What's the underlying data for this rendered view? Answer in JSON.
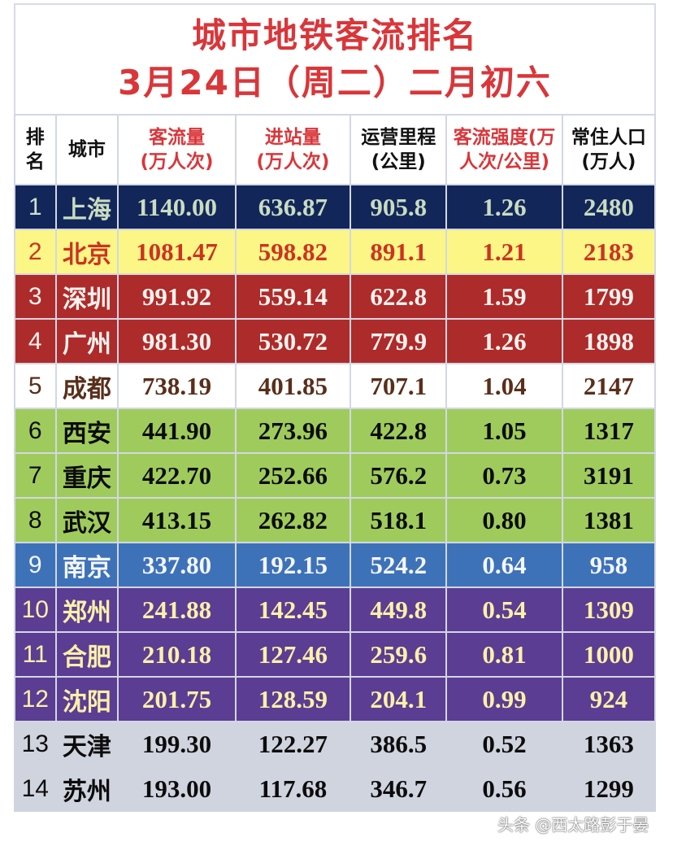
{
  "title": {
    "line1": "城市地铁客流排名",
    "line2": "3月24日（周二）二月初六"
  },
  "headers": [
    {
      "l1": "排",
      "l2": "名",
      "style": "black"
    },
    {
      "l1": "城市",
      "l2": "",
      "style": "black"
    },
    {
      "l1": "客流量",
      "l2": "(万人次)",
      "style": "red"
    },
    {
      "l1": "进站量",
      "l2": "(万人次)",
      "style": "red"
    },
    {
      "l1": "运营里程",
      "l2": "(公里)",
      "style": "black"
    },
    {
      "l1": "客流强度(万",
      "l2": "人次/公里)",
      "style": "red"
    },
    {
      "l1": "常住人口",
      "l2": "(万人)",
      "style": "black"
    }
  ],
  "rows": [
    {
      "rank": "1",
      "city": "上海",
      "flow": "1140.00",
      "entry": "636.87",
      "km": "905.8",
      "intensity": "1.26",
      "pop": "2480",
      "theme": "navy"
    },
    {
      "rank": "2",
      "city": "北京",
      "flow": "1081.47",
      "entry": "598.82",
      "km": "891.1",
      "intensity": "1.21",
      "pop": "2183",
      "theme": "yellow"
    },
    {
      "rank": "3",
      "city": "深圳",
      "flow": "991.92",
      "entry": "559.14",
      "km": "622.8",
      "intensity": "1.59",
      "pop": "1799",
      "theme": "red"
    },
    {
      "rank": "4",
      "city": "广州",
      "flow": "981.30",
      "entry": "530.72",
      "km": "779.9",
      "intensity": "1.26",
      "pop": "1898",
      "theme": "red"
    },
    {
      "rank": "5",
      "city": "成都",
      "flow": "738.19",
      "entry": "401.85",
      "km": "707.1",
      "intensity": "1.04",
      "pop": "2147",
      "theme": "white"
    },
    {
      "rank": "6",
      "city": "西安",
      "flow": "441.90",
      "entry": "273.96",
      "km": "422.8",
      "intensity": "1.05",
      "pop": "1317",
      "theme": "green"
    },
    {
      "rank": "7",
      "city": "重庆",
      "flow": "422.70",
      "entry": "252.66",
      "km": "576.2",
      "intensity": "0.73",
      "pop": "3191",
      "theme": "green"
    },
    {
      "rank": "8",
      "city": "武汉",
      "flow": "413.15",
      "entry": "262.82",
      "km": "518.1",
      "intensity": "0.80",
      "pop": "1381",
      "theme": "green"
    },
    {
      "rank": "9",
      "city": "南京",
      "flow": "337.80",
      "entry": "192.15",
      "km": "524.2",
      "intensity": "0.64",
      "pop": "958",
      "theme": "blue"
    },
    {
      "rank": "10",
      "city": "郑州",
      "flow": "241.88",
      "entry": "142.45",
      "km": "449.8",
      "intensity": "0.54",
      "pop": "1309",
      "theme": "purple"
    },
    {
      "rank": "11",
      "city": "合肥",
      "flow": "210.18",
      "entry": "127.46",
      "km": "259.6",
      "intensity": "0.81",
      "pop": "1000",
      "theme": "purple"
    },
    {
      "rank": "12",
      "city": "沈阳",
      "flow": "201.75",
      "entry": "128.59",
      "km": "204.1",
      "intensity": "0.99",
      "pop": "924",
      "theme": "purple"
    },
    {
      "rank": "13",
      "city": "天津",
      "flow": "199.30",
      "entry": "122.27",
      "km": "386.5",
      "intensity": "0.52",
      "pop": "1363",
      "theme": "gray"
    },
    {
      "rank": "14",
      "city": "苏州",
      "flow": "193.00",
      "entry": "117.68",
      "km": "346.7",
      "intensity": "0.56",
      "pop": "1299",
      "theme": "gray"
    }
  ],
  "colors": {
    "title_red": "#d9363a",
    "navy": "#13265a",
    "yellow": "#fbf686",
    "red": "#ad2b2a",
    "green": "#9fcb5d",
    "blue": "#3d72b9",
    "purple": "#5b3d93",
    "gray": "#d0d4df"
  },
  "watermark": "头条 @西太路彭于晏"
}
